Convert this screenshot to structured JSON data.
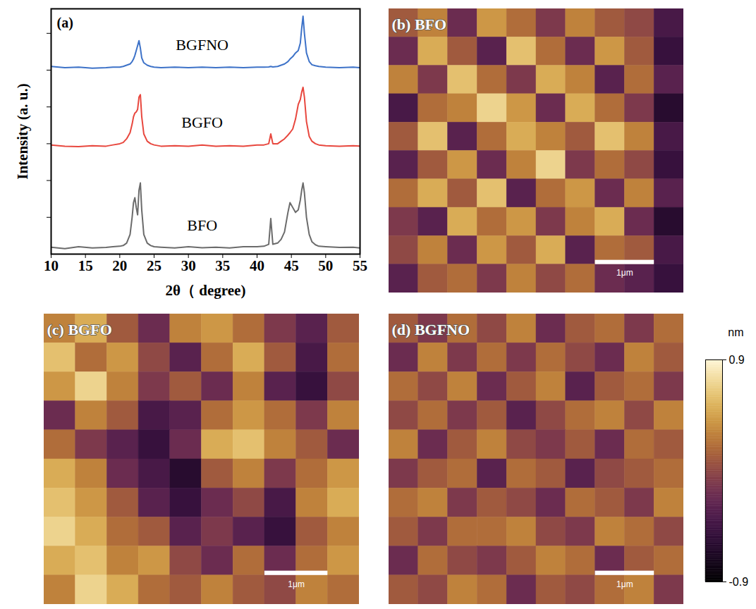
{
  "chart_data": [
    {
      "type": "line",
      "title": "(a)",
      "xlabel": "2θ（ degree)",
      "ylabel": "Intensity (a. u.)",
      "xlim": [
        10,
        55
      ],
      "ylim": [
        0,
        10
      ],
      "xticks": [
        10,
        15,
        20,
        25,
        30,
        35,
        40,
        45,
        50,
        55
      ],
      "yticks": [
        1.5,
        3,
        4.5,
        6,
        7.5,
        9
      ],
      "tick_labels": "x",
      "x": [
        10,
        12,
        14,
        16,
        18,
        19,
        20,
        20.5,
        21,
        21.5,
        21.8,
        22,
        22.2,
        22.4,
        22.6,
        22.8,
        23,
        23.2,
        23.5,
        24,
        24.5,
        25,
        26,
        28,
        30,
        32,
        34,
        36,
        38,
        40,
        41,
        41.7,
        42,
        42.3,
        43,
        43.5,
        44,
        44.5,
        44.8,
        45.2,
        45.6,
        46,
        46.3,
        46.5,
        46.7,
        46.9,
        47.2,
        47.6,
        48,
        48.5,
        49,
        50,
        52,
        54,
        55
      ],
      "series": [
        {
          "name": "BGFNO",
          "color": "#3d72c8",
          "values": [
            7.65,
            7.6,
            7.62,
            7.58,
            7.6,
            7.62,
            7.62,
            7.65,
            7.7,
            7.75,
            7.85,
            7.95,
            8.1,
            8.3,
            8.5,
            8.7,
            8.4,
            8.0,
            7.8,
            7.7,
            7.65,
            7.62,
            7.6,
            7.62,
            7.6,
            7.62,
            7.6,
            7.62,
            7.6,
            7.62,
            7.62,
            7.63,
            7.65,
            7.63,
            7.65,
            7.7,
            7.75,
            7.85,
            7.95,
            8.05,
            8.2,
            8.3,
            8.6,
            9.2,
            9.7,
            9.0,
            8.2,
            7.85,
            7.72,
            7.68,
            7.65,
            7.62,
            7.6,
            7.62,
            7.6
          ]
        },
        {
          "name": "BGFO",
          "color": "#e8473e",
          "values": [
            4.45,
            4.4,
            4.38,
            4.42,
            4.4,
            4.45,
            4.5,
            4.55,
            4.7,
            4.95,
            5.3,
            5.6,
            5.75,
            5.8,
            5.9,
            6.4,
            6.5,
            5.6,
            4.9,
            4.6,
            4.5,
            4.45,
            4.4,
            4.42,
            4.4,
            4.45,
            4.4,
            4.42,
            4.4,
            4.45,
            4.45,
            4.5,
            4.9,
            4.5,
            4.5,
            4.6,
            4.7,
            4.85,
            4.95,
            5.1,
            5.5,
            6.1,
            6.3,
            6.6,
            6.8,
            6.4,
            5.4,
            4.8,
            4.6,
            4.5,
            4.45,
            4.42,
            4.4,
            4.42,
            4.4
          ]
        },
        {
          "name": "BFO",
          "color": "#6b6b6b",
          "values": [
            0.28,
            0.22,
            0.3,
            0.25,
            0.27,
            0.3,
            0.32,
            0.35,
            0.45,
            0.8,
            1.5,
            2.1,
            2.3,
            1.9,
            1.6,
            2.6,
            2.9,
            1.8,
            0.8,
            0.45,
            0.35,
            0.3,
            0.28,
            0.25,
            0.3,
            0.26,
            0.28,
            0.25,
            0.3,
            0.3,
            0.32,
            0.4,
            1.45,
            0.4,
            0.45,
            0.6,
            0.9,
            1.7,
            2.1,
            1.9,
            1.7,
            1.8,
            2.2,
            2.6,
            2.9,
            2.5,
            1.5,
            0.8,
            0.5,
            0.38,
            0.32,
            0.3,
            0.27,
            0.28,
            0.25
          ]
        }
      ]
    },
    {
      "type": "heatmap",
      "title": "(b) BFO",
      "xlim": [
        0,
        5
      ],
      "ylim": [
        0,
        5
      ],
      "tick_labels": false,
      "scale_bar": {
        "length": 1,
        "label": "1μm"
      },
      "cells": [
        [
          0.1,
          0.3,
          -0.2,
          0.4,
          0.2,
          -0.1,
          0.3,
          0.1,
          0.0,
          -0.4
        ],
        [
          -0.2,
          0.5,
          0.1,
          -0.3,
          0.6,
          0.2,
          -0.2,
          0.4,
          0.1,
          -0.5
        ],
        [
          0.3,
          -0.1,
          0.6,
          0.2,
          -0.1,
          0.5,
          0.3,
          -0.3,
          0.2,
          -0.3
        ],
        [
          -0.4,
          0.2,
          0.3,
          0.7,
          0.4,
          -0.2,
          0.5,
          0.2,
          -0.1,
          -0.6
        ],
        [
          0.1,
          0.6,
          -0.3,
          0.2,
          0.5,
          0.3,
          0.1,
          0.6,
          0.3,
          -0.4
        ],
        [
          -0.3,
          0.1,
          0.4,
          -0.2,
          0.3,
          0.7,
          -0.1,
          0.2,
          0.0,
          -0.5
        ],
        [
          0.2,
          0.5,
          0.1,
          0.6,
          -0.3,
          0.2,
          0.4,
          -0.2,
          0.3,
          -0.3
        ],
        [
          -0.1,
          -0.3,
          0.5,
          0.2,
          0.4,
          -0.1,
          0.3,
          0.5,
          -0.2,
          -0.6
        ],
        [
          0.0,
          0.3,
          -0.2,
          0.4,
          0.1,
          0.5,
          -0.3,
          0.2,
          0.1,
          -0.4
        ],
        [
          -0.3,
          0.1,
          0.2,
          -0.1,
          0.3,
          0.0,
          0.2,
          -0.2,
          -0.3,
          -0.5
        ]
      ]
    },
    {
      "type": "heatmap",
      "title": "(c) BGFO",
      "xlim": [
        0,
        5
      ],
      "ylim": [
        0,
        5
      ],
      "tick_labels": false,
      "scale_bar": {
        "length": 1,
        "label": "1μm"
      },
      "cells": [
        [
          0.3,
          0.5,
          0.1,
          -0.2,
          0.3,
          0.4,
          0.2,
          -0.1,
          -0.3,
          0.1
        ],
        [
          0.6,
          0.2,
          0.4,
          0.0,
          -0.3,
          0.2,
          0.5,
          0.1,
          -0.4,
          0.2
        ],
        [
          0.4,
          0.7,
          0.3,
          -0.1,
          0.1,
          -0.2,
          0.3,
          -0.3,
          -0.5,
          0.0
        ],
        [
          -0.2,
          0.3,
          0.1,
          -0.4,
          -0.3,
          0.2,
          0.4,
          0.2,
          -0.1,
          0.3
        ],
        [
          0.2,
          -0.1,
          -0.3,
          -0.5,
          -0.2,
          0.5,
          0.6,
          0.3,
          0.1,
          -0.2
        ],
        [
          0.5,
          0.3,
          -0.2,
          -0.4,
          -0.6,
          0.1,
          0.3,
          -0.1,
          0.2,
          0.4
        ],
        [
          0.6,
          0.4,
          0.1,
          -0.3,
          -0.5,
          -0.2,
          0.0,
          -0.4,
          0.3,
          0.5
        ],
        [
          0.7,
          0.5,
          0.2,
          0.1,
          -0.3,
          -0.1,
          -0.3,
          -0.5,
          0.1,
          0.3
        ],
        [
          0.5,
          0.6,
          0.3,
          0.4,
          0.0,
          -0.2,
          0.2,
          -0.2,
          0.2,
          0.4
        ],
        [
          0.3,
          0.7,
          0.5,
          0.2,
          0.1,
          0.3,
          0.1,
          0.0,
          0.3,
          0.2
        ]
      ]
    },
    {
      "type": "heatmap",
      "title": "(d) BGFNO",
      "xlim": [
        0,
        5
      ],
      "ylim": [
        0,
        5
      ],
      "tick_labels": false,
      "scale_bar": {
        "length": 1,
        "label": "1μm"
      },
      "colorbar": {
        "range": [
          -0.9,
          0.9
        ],
        "ticks": [
          -0.9,
          0.9
        ],
        "label": "nm"
      },
      "cells": [
        [
          0.1,
          -0.1,
          0.2,
          0.0,
          0.3,
          -0.2,
          0.1,
          0.2,
          -0.1,
          0.2
        ],
        [
          -0.2,
          0.3,
          -0.1,
          0.2,
          -0.1,
          0.2,
          0.0,
          -0.2,
          0.3,
          0.1
        ],
        [
          0.2,
          0.0,
          0.3,
          -0.2,
          0.1,
          0.3,
          -0.3,
          0.1,
          0.2,
          -0.1
        ],
        [
          0.0,
          0.2,
          -0.1,
          0.1,
          -0.3,
          0.0,
          0.2,
          0.3,
          0.0,
          0.3
        ],
        [
          0.3,
          -0.2,
          0.1,
          0.3,
          0.0,
          -0.1,
          0.1,
          -0.2,
          0.2,
          0.1
        ],
        [
          -0.1,
          0.1,
          0.2,
          -0.3,
          0.2,
          0.1,
          -0.3,
          0.0,
          0.1,
          0.2
        ],
        [
          0.2,
          0.3,
          -0.1,
          0.1,
          0.0,
          -0.2,
          0.2,
          0.1,
          -0.1,
          0.3
        ],
        [
          0.1,
          -0.1,
          0.2,
          0.2,
          0.3,
          0.0,
          -0.1,
          0.3,
          0.2,
          0.0
        ],
        [
          -0.2,
          0.2,
          0.0,
          -0.1,
          0.1,
          0.3,
          0.2,
          -0.2,
          0.1,
          0.2
        ],
        [
          0.1,
          0.0,
          0.3,
          0.2,
          -0.2,
          0.1,
          0.0,
          0.2,
          0.3,
          -0.1
        ]
      ]
    }
  ]
}
